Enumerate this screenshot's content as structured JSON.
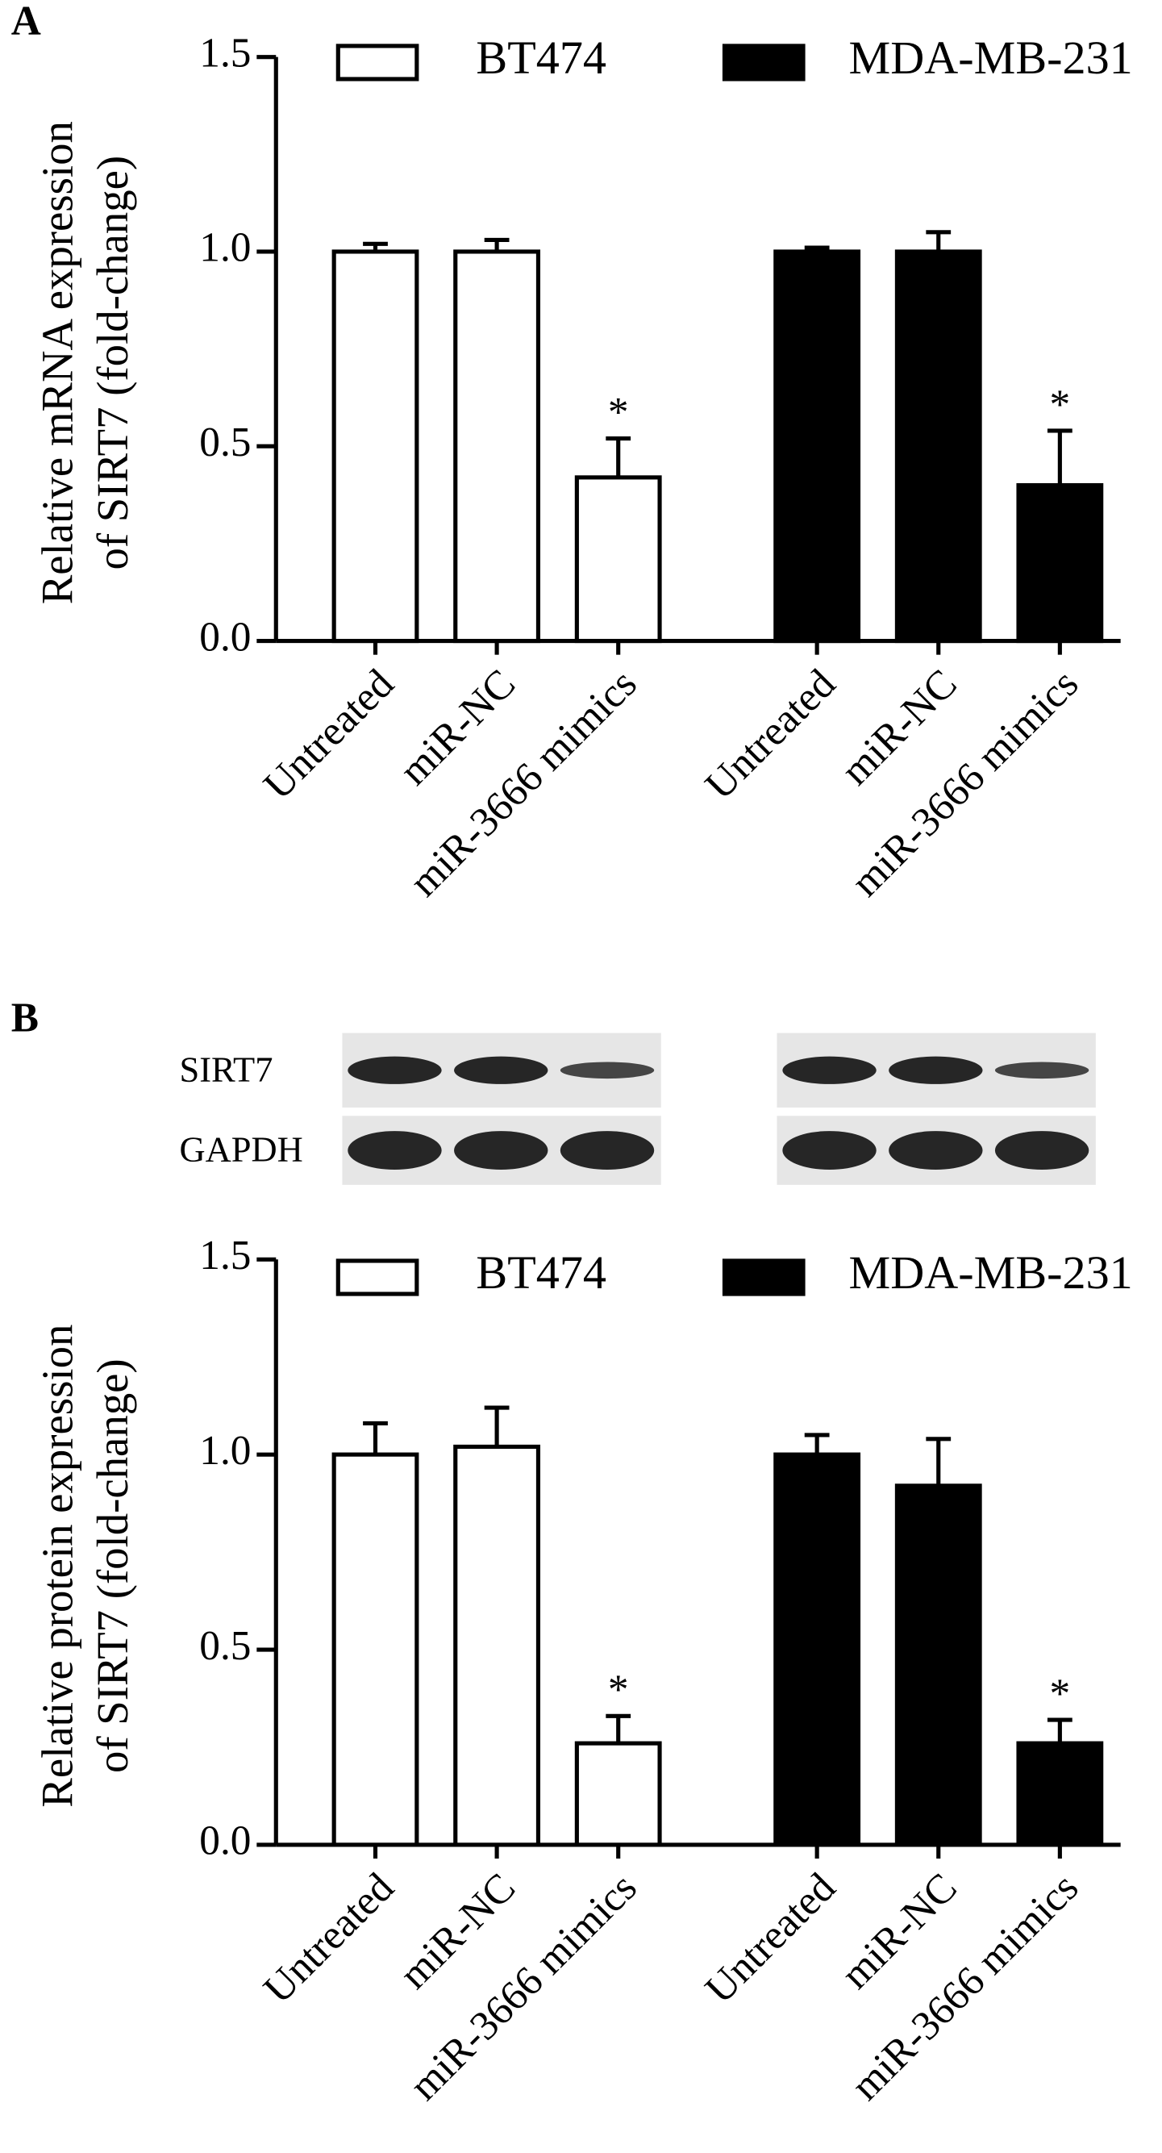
{
  "chart_data": [
    {
      "type": "bar",
      "panel": "A",
      "y_label": [
        "Relative mRNA expression",
        "of SIRT7 (fold-change)"
      ],
      "categories": [
        "Untreated",
        "miR-NC",
        "miR-3666 mimics"
      ],
      "series": [
        {
          "name": "BT474",
          "color": "#ffffff",
          "values": [
            1.0,
            1.0,
            0.42
          ],
          "errors": [
            0.02,
            0.03,
            0.1
          ],
          "annotations": [
            null,
            null,
            "*"
          ]
        },
        {
          "name": "MDA-MB-231",
          "color": "#000000",
          "values": [
            1.0,
            1.0,
            0.4
          ],
          "errors": [
            0.01,
            0.05,
            0.14
          ],
          "annotations": [
            null,
            null,
            "*"
          ]
        }
      ],
      "ylim": [
        0,
        1.5
      ],
      "yticks": [
        {
          "value": 0,
          "label": "0.0"
        },
        {
          "value": 0.5,
          "label": "0.5"
        },
        {
          "value": 1,
          "label": "1.0"
        },
        {
          "value": 1.5,
          "label": "1.5"
        }
      ],
      "legend": "top"
    },
    {
      "type": "bar",
      "panel": "B",
      "blot_labels": [
        "SIRT7",
        "GAPDH"
      ],
      "y_label": [
        "Relative protein expression",
        "of SIRT7 (fold-change)"
      ],
      "categories": [
        "Untreated",
        "miR-NC",
        "miR-3666 mimics"
      ],
      "series": [
        {
          "name": "BT474",
          "color": "#ffffff",
          "values": [
            1.0,
            1.02,
            0.26
          ],
          "errors": [
            0.08,
            0.1,
            0.07
          ],
          "annotations": [
            null,
            null,
            "*"
          ]
        },
        {
          "name": "MDA-MB-231",
          "color": "#000000",
          "values": [
            1.0,
            0.92,
            0.26
          ],
          "errors": [
            0.05,
            0.12,
            0.06
          ],
          "annotations": [
            null,
            null,
            "*"
          ]
        }
      ],
      "ylim": [
        0,
        1.5
      ],
      "yticks": [
        {
          "value": 0,
          "label": "0.0"
        },
        {
          "value": 0.5,
          "label": "0.5"
        },
        {
          "value": 1,
          "label": "1.0"
        },
        {
          "value": 1.5,
          "label": "1.5"
        }
      ],
      "legend": "top"
    }
  ]
}
